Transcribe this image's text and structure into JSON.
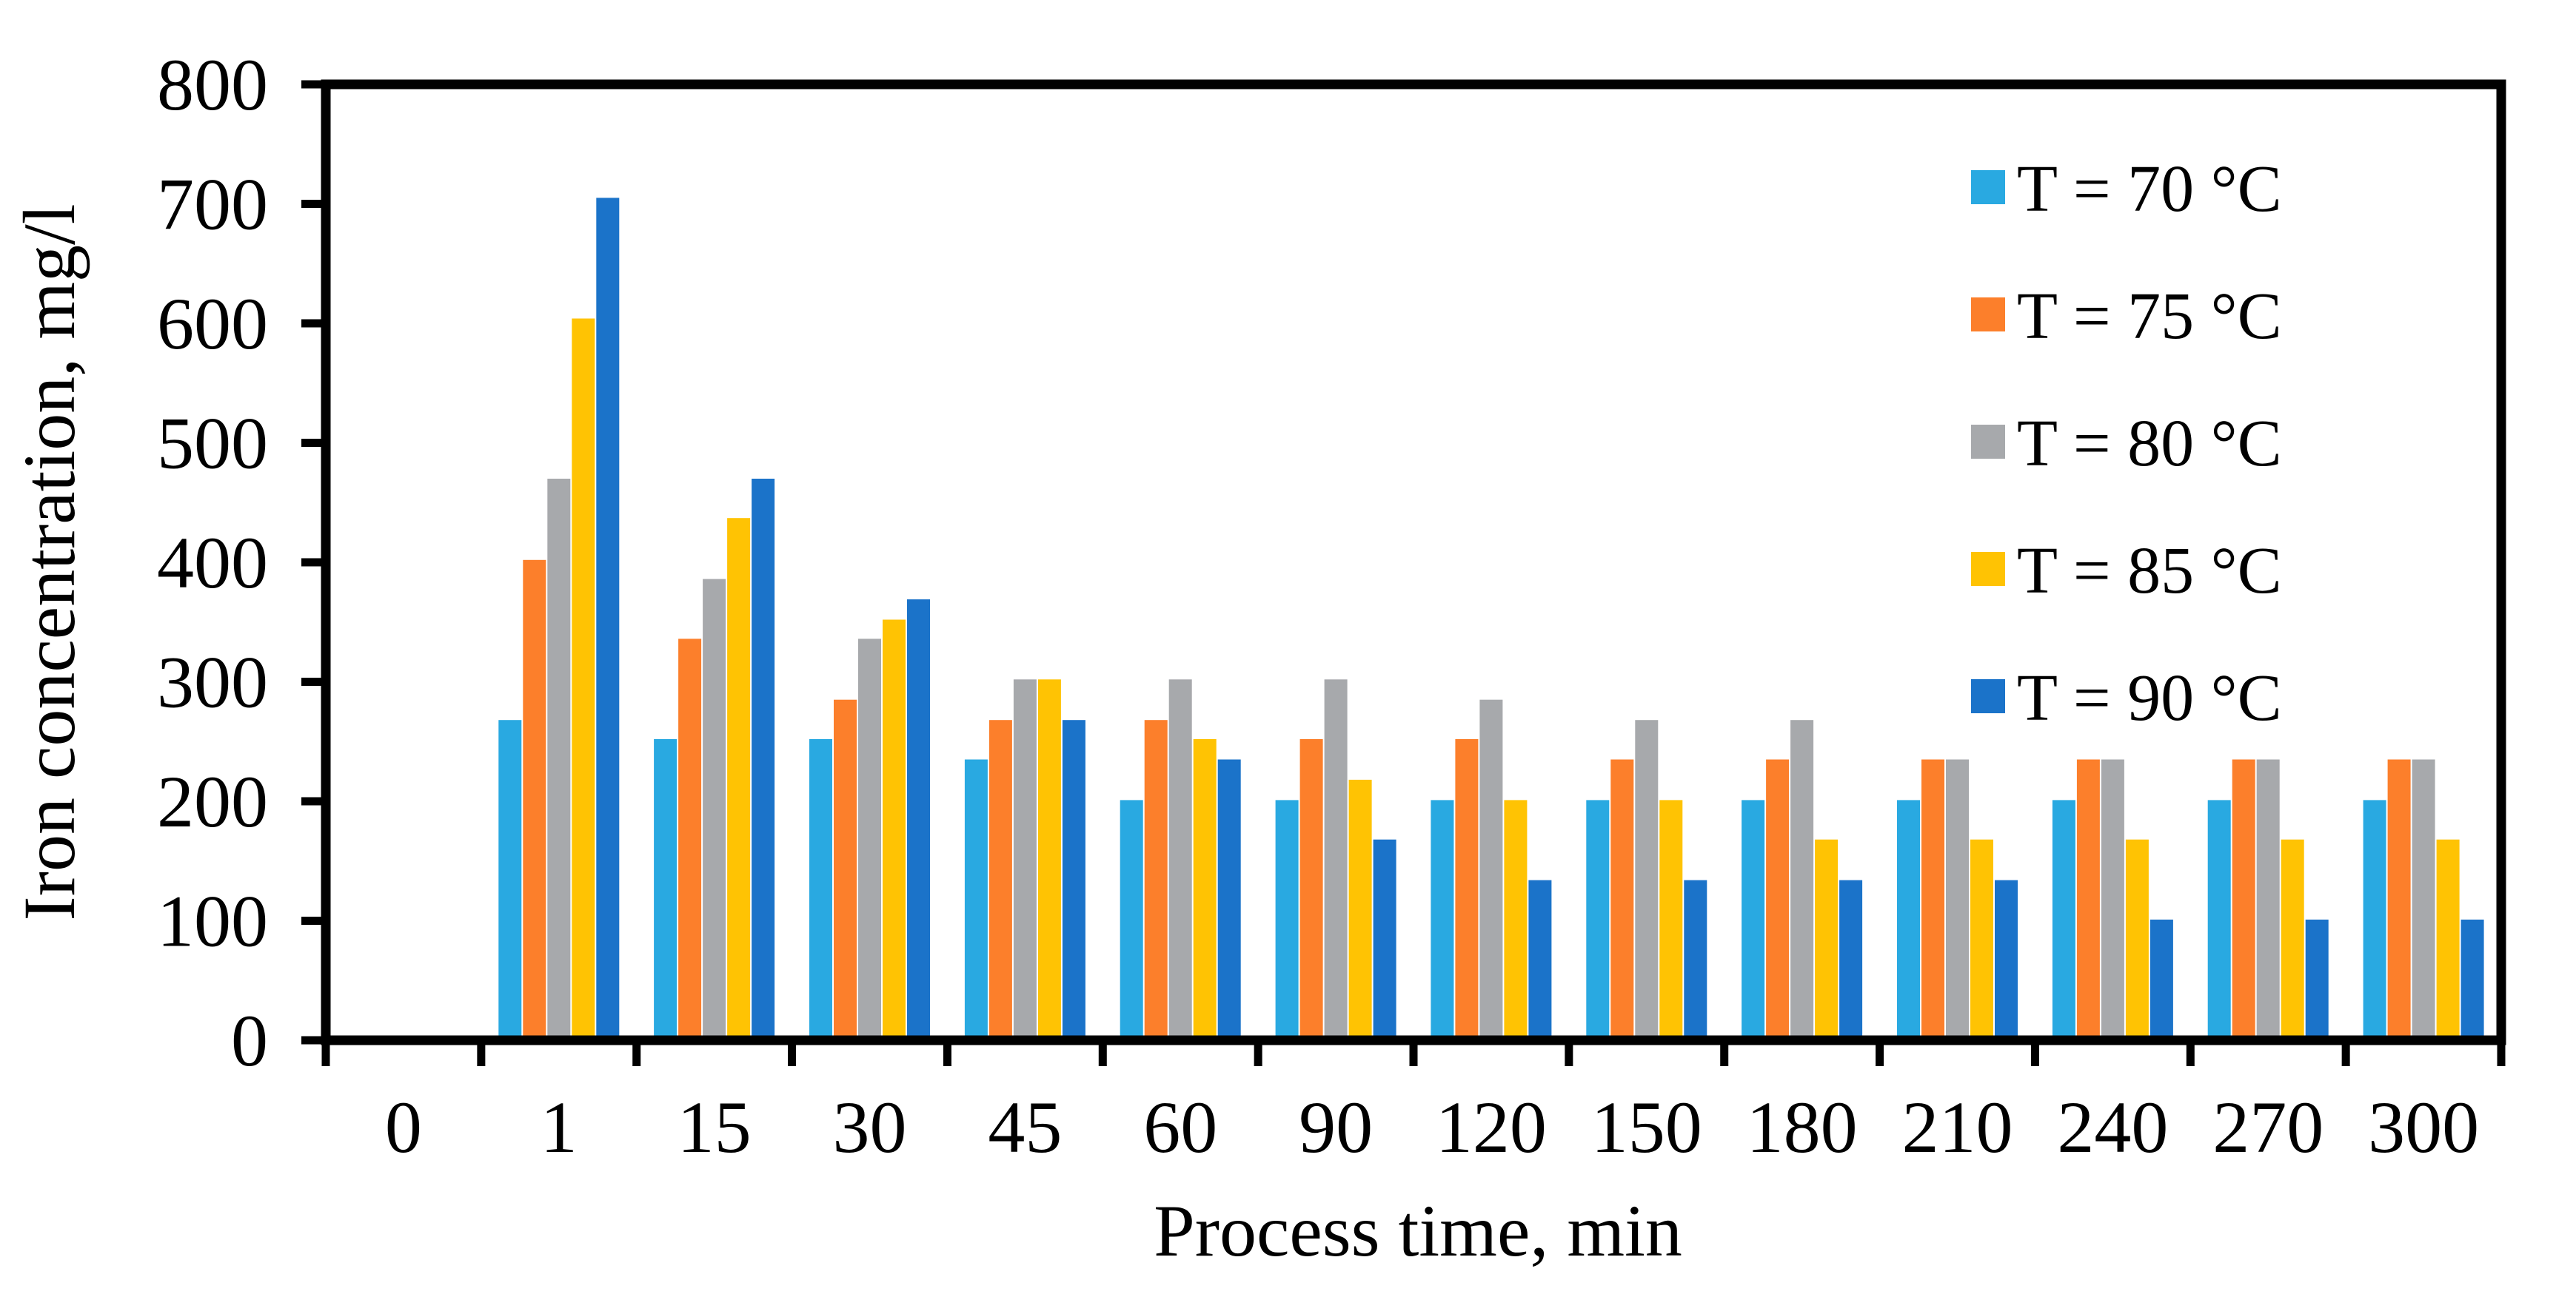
{
  "chart_data": {
    "type": "bar",
    "title": "",
    "xlabel": "Process time, min",
    "ylabel": "Iron concentration, mg/l",
    "categories": [
      "0",
      "1",
      "15",
      "30",
      "45",
      "60",
      "90",
      "120",
      "150",
      "180",
      "210",
      "240",
      "270",
      "300"
    ],
    "series": [
      {
        "name": "T = 70 °C",
        "color": "#29A9E1",
        "values": [
          null,
          268,
          252,
          252,
          235,
          201,
          201,
          201,
          201,
          201,
          201,
          201,
          201,
          201
        ]
      },
      {
        "name": "T = 75 °C",
        "color": "#FC7F2B",
        "values": [
          null,
          402,
          336,
          285,
          268,
          268,
          252,
          252,
          235,
          235,
          235,
          235,
          235,
          235
        ]
      },
      {
        "name": "T = 80 °C",
        "color": "#A7A9AC",
        "values": [
          null,
          470,
          386,
          336,
          302,
          302,
          302,
          285,
          268,
          268,
          235,
          235,
          235,
          235
        ]
      },
      {
        "name": "T = 85 °C",
        "color": "#FFC303",
        "values": [
          null,
          604,
          437,
          352,
          302,
          252,
          218,
          201,
          201,
          168,
          168,
          168,
          168,
          168
        ]
      },
      {
        "name": "T = 90 °C",
        "color": "#1B73C9",
        "values": [
          null,
          705,
          470,
          369,
          268,
          235,
          168,
          134,
          134,
          134,
          134,
          101,
          101,
          101
        ]
      }
    ],
    "ylim": [
      0,
      800
    ],
    "ytick_step": 100,
    "yticks": [
      0,
      100,
      200,
      300,
      400,
      500,
      600,
      700,
      800
    ],
    "grid": false,
    "legend_position": "top-right",
    "axis_color": "#000000",
    "background_color": "#ffffff"
  }
}
